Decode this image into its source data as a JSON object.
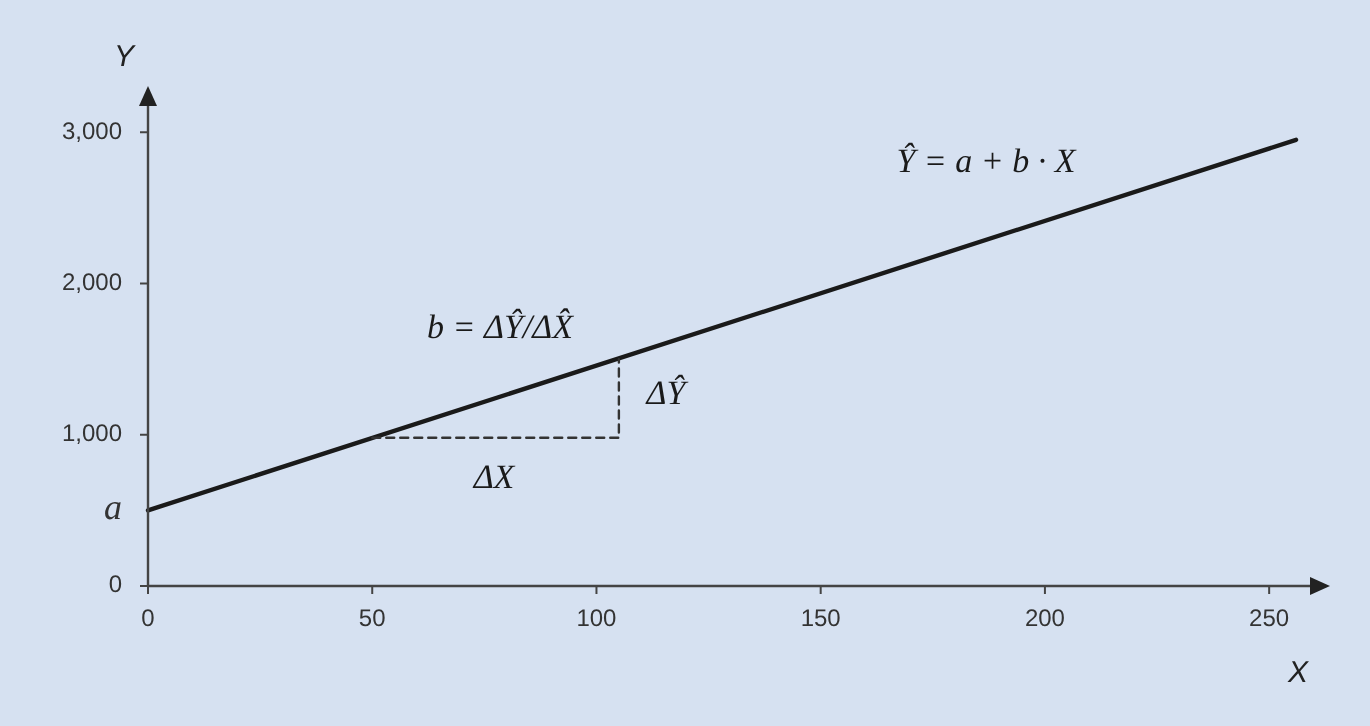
{
  "chart_data": {
    "type": "line",
    "xlabel": "X",
    "ylabel": "Y",
    "xlim": [
      0,
      260
    ],
    "xticks": [
      0,
      50,
      100,
      150,
      200,
      250
    ],
    "ylim": [
      0,
      3200
    ],
    "yticks": [
      0,
      {
        "value": 1000,
        "label": "1,000"
      },
      {
        "value": 2000,
        "label": "2,000"
      },
      {
        "value": 3000,
        "label": "3,000"
      }
    ],
    "grid": false,
    "marker": "none",
    "series": [
      {
        "color": "#1a1a1a",
        "x": [
          0,
          256
        ],
        "values": [
          500,
          2950
        ],
        "line_style": "solid"
      },
      {
        "color": "#333333",
        "x": [
          50,
          105,
          105
        ],
        "values": [
          980,
          980,
          1500
        ],
        "line_style": "dashed"
      }
    ],
    "annotations": [
      "Ŷ = a + b · X",
      "b = ΔŶ/ΔX̂",
      "ΔX",
      "ΔŶ",
      {
        "text": "a",
        "x": 0,
        "y": 500
      }
    ]
  }
}
